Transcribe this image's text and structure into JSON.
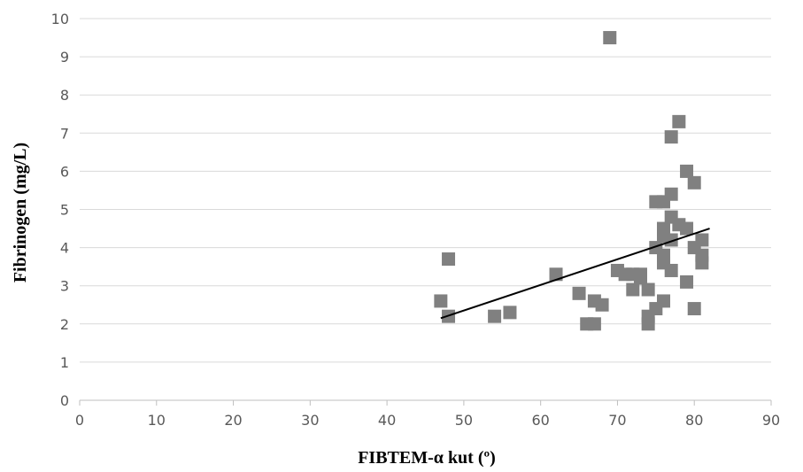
{
  "chart_data": {
    "type": "scatter",
    "title": "",
    "xlabel": "FIBTEM-α kut (º)",
    "ylabel": "Fibrinogen (mg/L)",
    "xlim": [
      0,
      90
    ],
    "ylim": [
      0,
      10
    ],
    "x_ticks": [
      "0",
      "10",
      "20",
      "30",
      "40",
      "50",
      "60",
      "70",
      "80",
      "90"
    ],
    "y_ticks": [
      "0",
      "1",
      "2",
      "3",
      "4",
      "5",
      "6",
      "7",
      "8",
      "9",
      "10"
    ],
    "grid": "horizontal",
    "legend": "none",
    "marker_color": "#808080",
    "trendline_color": "#000000",
    "series": [
      {
        "points": [
          [
            47,
            2.6
          ],
          [
            48,
            3.7
          ],
          [
            48,
            2.2
          ],
          [
            54,
            2.2
          ],
          [
            56,
            2.3
          ],
          [
            62,
            3.3
          ],
          [
            65,
            2.8
          ],
          [
            66,
            2.0
          ],
          [
            67,
            2.0
          ],
          [
            67,
            2.6
          ],
          [
            68,
            2.5
          ],
          [
            69,
            9.5
          ],
          [
            70,
            3.4
          ],
          [
            71,
            3.3
          ],
          [
            72,
            3.3
          ],
          [
            72,
            2.9
          ],
          [
            73,
            3.2
          ],
          [
            73,
            3.3
          ],
          [
            74,
            2.9
          ],
          [
            74,
            2.0
          ],
          [
            74,
            2.2
          ],
          [
            75,
            5.2
          ],
          [
            75,
            4.0
          ],
          [
            75,
            2.4
          ],
          [
            76,
            5.2
          ],
          [
            76,
            4.5
          ],
          [
            76,
            4.3
          ],
          [
            76,
            3.8
          ],
          [
            76,
            3.6
          ],
          [
            76,
            2.6
          ],
          [
            77,
            6.9
          ],
          [
            77,
            5.4
          ],
          [
            77,
            4.8
          ],
          [
            77,
            4.2
          ],
          [
            77,
            3.4
          ],
          [
            78,
            7.3
          ],
          [
            78,
            4.6
          ],
          [
            79,
            6.0
          ],
          [
            79,
            4.5
          ],
          [
            79,
            3.1
          ],
          [
            80,
            5.7
          ],
          [
            80,
            4.0
          ],
          [
            80,
            2.4
          ],
          [
            81,
            4.2
          ],
          [
            81,
            3.8
          ],
          [
            81,
            3.6
          ]
        ]
      }
    ],
    "trendline": {
      "x": [
        47,
        82
      ],
      "y": [
        2.15,
        4.5
      ]
    }
  }
}
